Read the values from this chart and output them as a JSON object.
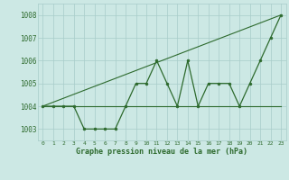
{
  "x": [
    0,
    1,
    2,
    3,
    4,
    5,
    6,
    7,
    8,
    9,
    10,
    11,
    12,
    13,
    14,
    15,
    16,
    17,
    18,
    19,
    20,
    21,
    22,
    23
  ],
  "y_main": [
    1004,
    1004,
    1004,
    1004,
    1003,
    1003,
    1003,
    1003,
    1004,
    1005,
    1005,
    1006,
    1005,
    1004,
    1006,
    1004,
    1005,
    1005,
    1005,
    1004,
    1005,
    1006,
    1007,
    1008
  ],
  "y_trend_flat": [
    1004,
    1004,
    1004,
    1004,
    1004,
    1004,
    1004,
    1004,
    1004,
    1004,
    1004,
    1004,
    1004,
    1004,
    1004,
    1004,
    1004,
    1004,
    1004,
    1004,
    1004,
    1004,
    1004,
    1004
  ],
  "y_trend_rise": [
    1004.0,
    1004.174,
    1004.348,
    1004.522,
    1004.696,
    1004.87,
    1005.043,
    1005.217,
    1005.391,
    1005.565,
    1005.739,
    1005.913,
    1006.087,
    1006.261,
    1006.435,
    1006.609,
    1006.783,
    1006.957,
    1007.13,
    1007.304,
    1007.478,
    1007.652,
    1007.826,
    1008.0
  ],
  "background_color": "#cce8e4",
  "grid_color": "#a8ccca",
  "line_color": "#2d6a2d",
  "ylabel_values": [
    1003,
    1004,
    1005,
    1006,
    1007,
    1008
  ],
  "xlabel": "Graphe pression niveau de la mer (hPa)",
  "ylim": [
    1002.5,
    1008.5
  ],
  "xlim": [
    -0.5,
    23.5
  ],
  "xtick_labels": [
    "0",
    "1",
    "2",
    "3",
    "4",
    "5",
    "6",
    "7",
    "8",
    "9",
    "10",
    "11",
    "12",
    "13",
    "14",
    "15",
    "16",
    "17",
    "18",
    "19",
    "20",
    "21",
    "22",
    "23"
  ]
}
